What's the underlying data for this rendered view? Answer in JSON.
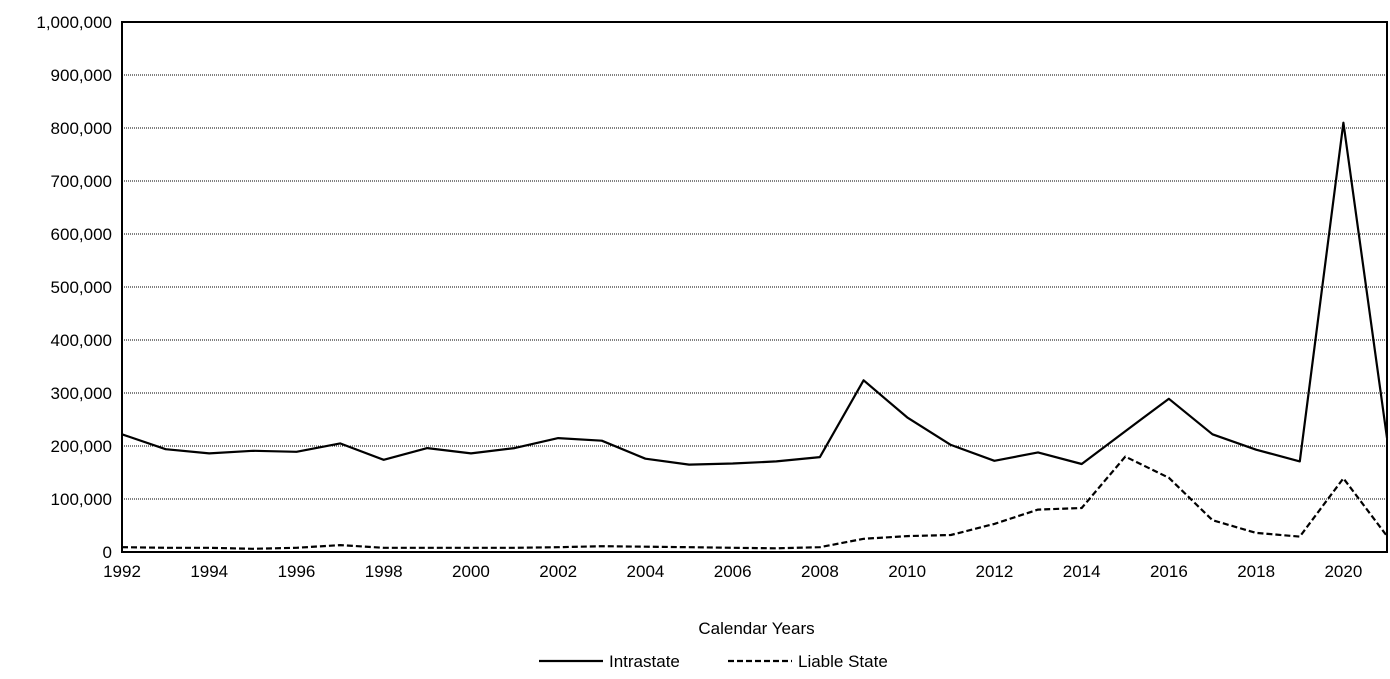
{
  "chart_data": {
    "type": "line",
    "title": "",
    "xlabel": "Calendar Years",
    "ylabel": "",
    "xlim": [
      1992,
      2021
    ],
    "ylim": [
      0,
      1000000
    ],
    "x_ticks": [
      "1992",
      "1994",
      "1996",
      "1998",
      "2000",
      "2002",
      "2004",
      "2006",
      "2008",
      "2010",
      "2012",
      "2014",
      "2016",
      "2018",
      "2020"
    ],
    "y_ticks": [
      "0",
      "100,000",
      "200,000",
      "300,000",
      "400,000",
      "500,000",
      "600,000",
      "700,000",
      "800,000",
      "900,000",
      "1,000,000"
    ],
    "y_tick_values": [
      0,
      100000,
      200000,
      300000,
      400000,
      500000,
      600000,
      700000,
      800000,
      900000,
      1000000
    ],
    "x_tick_values": [
      1992,
      1994,
      1996,
      1998,
      2000,
      2002,
      2004,
      2006,
      2008,
      2010,
      2012,
      2014,
      2016,
      2018,
      2020
    ],
    "grid": "horizontal",
    "legend_position": "bottom",
    "x": [
      1992,
      1993,
      1994,
      1995,
      1996,
      1997,
      1998,
      1999,
      2000,
      2001,
      2002,
      2003,
      2004,
      2005,
      2006,
      2007,
      2008,
      2009,
      2010,
      2011,
      2012,
      2013,
      2014,
      2015,
      2016,
      2017,
      2018,
      2019,
      2020,
      2021
    ],
    "series": [
      {
        "name": "Intrastate",
        "style": "solid",
        "color": "#000000",
        "values": [
          222000,
          194000,
          186000,
          191000,
          189000,
          205000,
          174000,
          196000,
          186000,
          196000,
          215000,
          210000,
          176000,
          165000,
          167000,
          171000,
          179000,
          324000,
          254000,
          202000,
          172000,
          188000,
          166000,
          228000,
          289000,
          222000,
          193000,
          171000,
          810000,
          215000
        ]
      },
      {
        "name": "Liable State",
        "style": "dashed",
        "color": "#000000",
        "values": [
          9000,
          8000,
          8000,
          6000,
          8000,
          13000,
          8000,
          8000,
          8000,
          8000,
          9000,
          11000,
          10000,
          9000,
          8000,
          7000,
          9000,
          25000,
          30000,
          32000,
          53000,
          80000,
          83000,
          180000,
          140000,
          60000,
          36000,
          29000,
          139000,
          30000
        ]
      }
    ]
  }
}
